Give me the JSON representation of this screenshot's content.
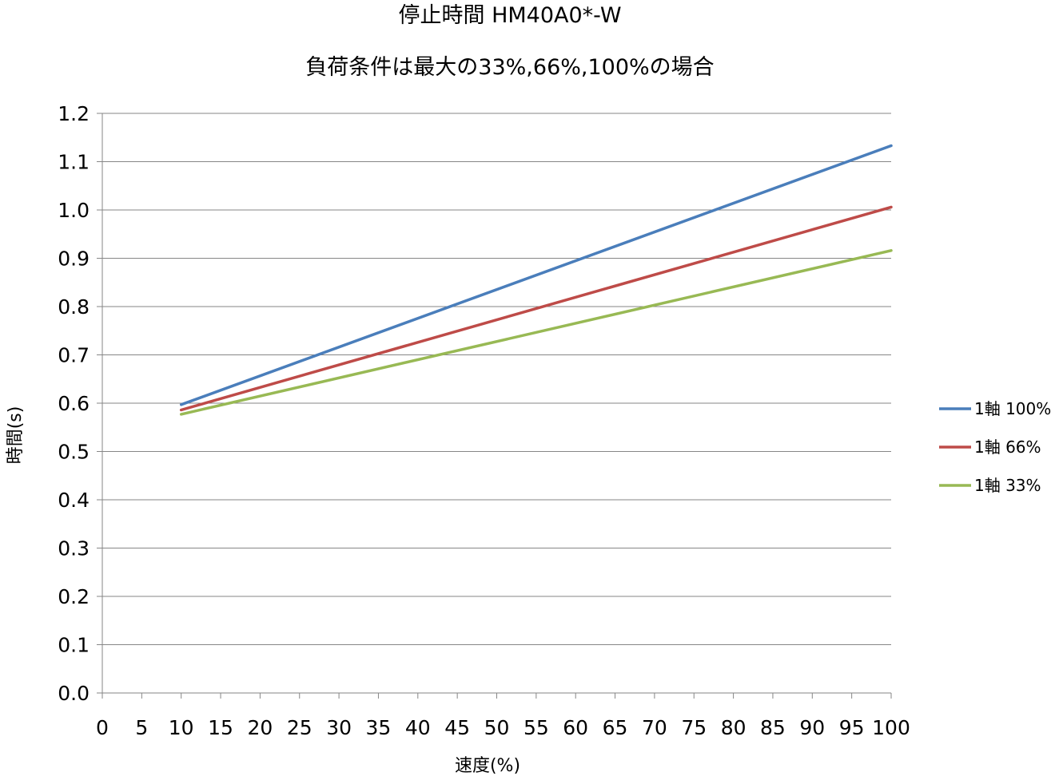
{
  "chart_data": {
    "type": "line",
    "title": "停止時間 HM40A0*-W",
    "subtitle": "負荷条件は最大の33%,66%,100%の場合",
    "xlabel": "速度(%)",
    "ylabel": "時間(s)",
    "xlim": [
      0,
      100
    ],
    "ylim": [
      0,
      1.2
    ],
    "x_ticks": [
      "0",
      "5",
      "10",
      "15",
      "20",
      "25",
      "30",
      "35",
      "40",
      "45",
      "50",
      "55",
      "60",
      "65",
      "70",
      "75",
      "80",
      "85",
      "90",
      "95",
      "100"
    ],
    "y_ticks": [
      "0.0",
      "0.1",
      "0.2",
      "0.3",
      "0.4",
      "0.5",
      "0.6",
      "0.7",
      "0.8",
      "0.9",
      "1.0",
      "1.1",
      "1.2"
    ],
    "grid": "horizontal",
    "legend_position": "right",
    "series": [
      {
        "name": "1軸 100%",
        "color": "#4a7ebb",
        "x": [
          10,
          100
        ],
        "y": [
          0.597,
          1.133
        ]
      },
      {
        "name": "1軸 66%",
        "color": "#be4b48",
        "x": [
          10,
          100
        ],
        "y": [
          0.586,
          1.006
        ]
      },
      {
        "name": "1軸 33%",
        "color": "#98b954",
        "x": [
          10,
          100
        ],
        "y": [
          0.577,
          0.916
        ]
      }
    ]
  }
}
